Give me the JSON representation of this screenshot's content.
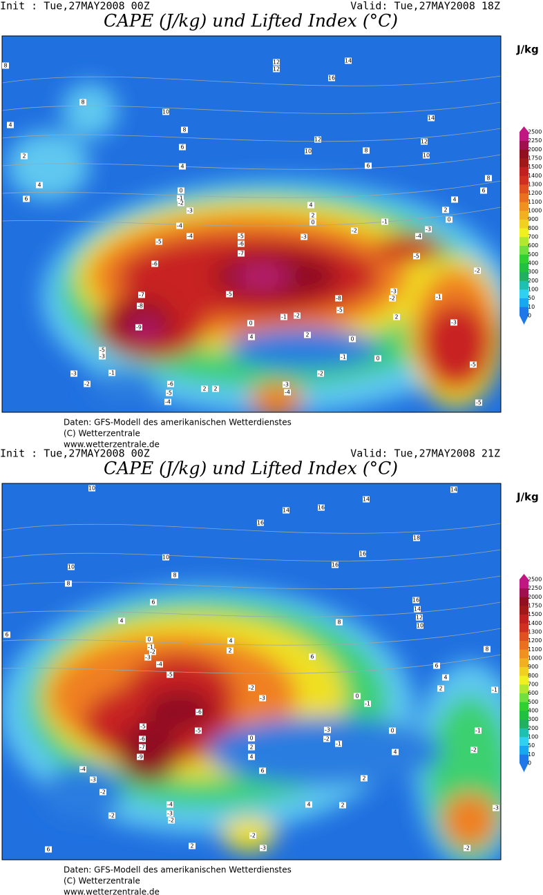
{
  "panels": [
    {
      "init": "Init : Tue,27MAY2008 00Z",
      "valid": "Valid: Tue,27MAY2008 18Z",
      "title": "CAPE (J/kg) und Lifted Index (°C)",
      "unit": "J/kg",
      "colorbar": {
        "levels": [
          0,
          10,
          50,
          100,
          200,
          300,
          400,
          500,
          600,
          700,
          800,
          900,
          1000,
          1100,
          1200,
          1300,
          1400,
          1500,
          1750,
          2000,
          2250,
          2500
        ],
        "colors": [
          "#1e78e8",
          "#18a8f0",
          "#30d0f0",
          "#20c0b0",
          "#20b060",
          "#20c040",
          "#30d030",
          "#70e040",
          "#b0e830",
          "#f0f020",
          "#f0d020",
          "#f0b020",
          "#f09020",
          "#e87020",
          "#e05020",
          "#d03020",
          "#c02020",
          "#a01818",
          "#901020",
          "#a01050",
          "#c01880"
        ]
      },
      "contour_labels": [
        8,
        8,
        4,
        2,
        4,
        6,
        12,
        12,
        14,
        16,
        10,
        8,
        14,
        12,
        12,
        10,
        10,
        8,
        6,
        8,
        6,
        4,
        2,
        0,
        4,
        2,
        0,
        -1,
        -2,
        -3,
        -4,
        -5,
        -3,
        -5,
        -6,
        -7,
        -4,
        -4,
        -5,
        -6,
        -7,
        -8,
        -9,
        -5,
        -8,
        -5,
        -3,
        -2,
        -1,
        -2,
        2,
        -3,
        -5,
        -5,
        -5,
        -3,
        -1,
        -3,
        -2,
        -6,
        -5,
        -4,
        2,
        2,
        -3,
        -4,
        -2,
        -1,
        0,
        0,
        0,
        4,
        2,
        -1,
        -2,
        2,
        6,
        4,
        0,
        -1,
        -2,
        -3
      ],
      "footer": [
        "Daten: GFS-Modell des amerikanischen Wetterdienstes",
        "(C) Wetterzentrale",
        "www.wetterzentrale.de"
      ]
    },
    {
      "init": "Init : Tue,27MAY2008 00Z",
      "valid": "Valid: Tue,27MAY2008 21Z",
      "title": "CAPE (J/kg) und Lifted Index (°C)",
      "unit": "J/kg",
      "colorbar": {
        "levels": [
          0,
          10,
          50,
          100,
          200,
          300,
          400,
          500,
          600,
          700,
          800,
          900,
          1000,
          1100,
          1200,
          1300,
          1400,
          1500,
          1750,
          2000,
          2250,
          2500
        ],
        "colors": [
          "#1e78e8",
          "#18a8f0",
          "#30d0f0",
          "#20c0b0",
          "#20b060",
          "#20c040",
          "#30d030",
          "#70e040",
          "#b0e830",
          "#f0f020",
          "#f0d020",
          "#f0b020",
          "#f09020",
          "#e87020",
          "#e05020",
          "#d03020",
          "#c02020",
          "#a01818",
          "#901020",
          "#a01050",
          "#c01880"
        ]
      },
      "contour_labels": [
        10,
        14,
        14,
        14,
        16,
        16,
        18,
        16,
        16,
        10,
        10,
        8,
        8,
        6,
        6,
        4,
        16,
        14,
        12,
        10,
        8,
        8,
        6,
        6,
        4,
        2,
        -1,
        4,
        2,
        0,
        -1,
        -2,
        -3,
        -4,
        -5,
        -6,
        -2,
        -3,
        0,
        -1,
        -5,
        -5,
        -6,
        -7,
        -9,
        -3,
        -2,
        -1,
        0,
        -1,
        -2,
        4,
        0,
        2,
        4,
        6,
        2,
        -4,
        -3,
        -2,
        -2,
        -4,
        -3,
        -2,
        4,
        2,
        -3,
        -2,
        -2,
        -3,
        2,
        6
      ],
      "footer": [
        "Daten: GFS-Modell des amerikanischen Wetterdienstes",
        "(C) Wetterzentrale",
        "www.wetterzentrale.de"
      ]
    }
  ]
}
